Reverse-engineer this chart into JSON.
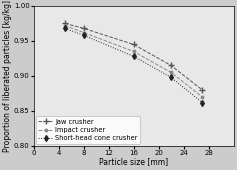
{
  "title": "",
  "xlabel": "Particle size [mm]",
  "ylabel": "Proportion of liberated particles [kg/kg]",
  "xlim": [
    0,
    32
  ],
  "ylim": [
    0.8,
    1.0
  ],
  "xticks": [
    0,
    4,
    8,
    12,
    16,
    20,
    24,
    28
  ],
  "yticks": [
    0.8,
    0.85,
    0.9,
    0.95,
    1.0
  ],
  "series": [
    {
      "label": "Jaw crusher",
      "x": [
        5,
        8,
        16,
        22,
        27
      ],
      "y": [
        0.975,
        0.968,
        0.945,
        0.915,
        0.88
      ],
      "color": "#555555",
      "linestyle": "--",
      "marker": "+",
      "markersize": 4,
      "linewidth": 0.7
    },
    {
      "label": "Impact crusher",
      "x": [
        5,
        8,
        16,
        22,
        27
      ],
      "y": [
        0.972,
        0.962,
        0.935,
        0.905,
        0.87
      ],
      "color": "#888888",
      "linestyle": "--",
      "marker": ".",
      "markersize": 3.5,
      "linewidth": 0.7
    },
    {
      "label": "Short-head cone crusher",
      "x": [
        5,
        8,
        16,
        22,
        27
      ],
      "y": [
        0.968,
        0.958,
        0.928,
        0.898,
        0.862
      ],
      "color": "#222222",
      "linestyle": ":",
      "marker": "d",
      "markersize": 3,
      "linewidth": 0.7
    }
  ],
  "background_color": "#cccccc",
  "plot_background": "#e8e8e8",
  "legend_fontsize": 4.8,
  "axis_fontsize": 5.5,
  "tick_fontsize": 5.0
}
